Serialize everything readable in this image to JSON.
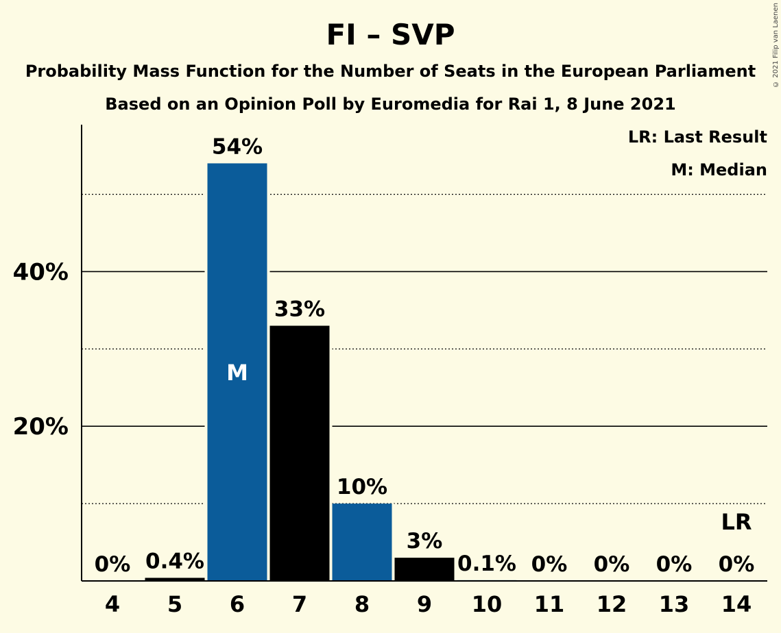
{
  "title": "FI – SVP",
  "subtitle": "Probability Mass Function for the Number of Seats in the European Parliament",
  "subtitle2": "Based on an Opinion Poll by Euromedia for Rai 1, 8 June 2021",
  "copyright": "© 2021 Filip van Laenen",
  "legend": {
    "last_result": "LR: Last Result",
    "median": "M: Median"
  },
  "colors": {
    "background": "#fdfbe4",
    "party_blue": "#0b5c9a",
    "black": "#000000"
  },
  "chart_data": {
    "type": "bar",
    "categories": [
      "4",
      "5",
      "6",
      "7",
      "8",
      "9",
      "10",
      "11",
      "12",
      "13",
      "14"
    ],
    "values": [
      0,
      0.4,
      54,
      33,
      10,
      3,
      0.1,
      0,
      0,
      0,
      0
    ],
    "value_labels": [
      "0%",
      "0.4%",
      "54%",
      "33%",
      "10%",
      "3%",
      "0.1%",
      "0%",
      "0%",
      "0%",
      "0%"
    ],
    "bar_colors": [
      "#0b5c9a",
      "#000000",
      "#0b5c9a",
      "#000000",
      "#0b5c9a",
      "#000000",
      "#0b5c9a",
      "#000000",
      "#0b5c9a",
      "#000000",
      "#0b5c9a"
    ],
    "median_category": "6",
    "median_label": "M",
    "last_result_category": "14",
    "last_result_label": "LR",
    "ylim": [
      0,
      59
    ],
    "yticks": [
      20,
      40
    ],
    "ytick_labels": [
      "20%",
      "40%"
    ],
    "minor_gridlines": [
      10,
      30,
      50
    ],
    "grid": true,
    "legend_position": "top-right"
  }
}
